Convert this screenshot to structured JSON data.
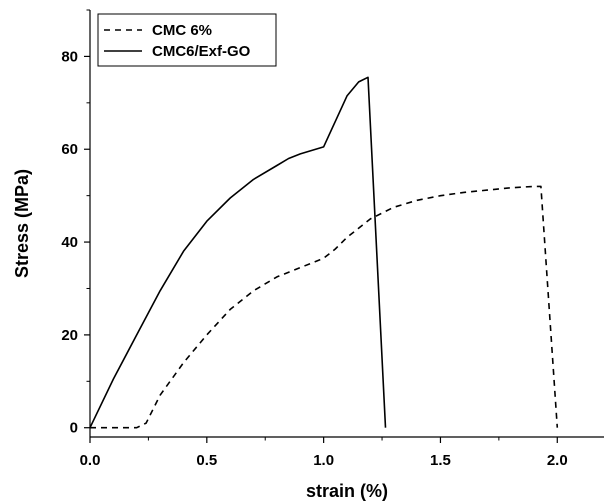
{
  "chart_data": {
    "type": "line",
    "xlabel": "strain (%)",
    "ylabel": "Stress (MPa)",
    "xlim": [
      0,
      2.2
    ],
    "ylim": [
      -2,
      90
    ],
    "xticks": [
      0.0,
      0.5,
      1.0,
      1.5,
      2.0
    ],
    "xtick_labels": [
      "0.0",
      "0.5",
      "1.0",
      "1.5",
      "2.0"
    ],
    "yticks": [
      0,
      20,
      40,
      60,
      80
    ],
    "ytick_labels": [
      "0",
      "20",
      "40",
      "60",
      "80"
    ],
    "grid": false,
    "legend_position": "top-left",
    "series": [
      {
        "name": "CMC 6%",
        "style": "dashed",
        "color": "#000000",
        "x": [
          0.0,
          0.2,
          0.24,
          0.3,
          0.4,
          0.5,
          0.6,
          0.7,
          0.8,
          0.9,
          1.0,
          1.05,
          1.1,
          1.2,
          1.3,
          1.4,
          1.5,
          1.6,
          1.7,
          1.8,
          1.9,
          1.93,
          2.0
        ],
        "y": [
          0,
          0,
          1,
          7,
          14,
          20,
          25.5,
          29.5,
          32.5,
          34.5,
          36.5,
          38.5,
          41,
          45,
          47.5,
          49,
          50,
          50.7,
          51.2,
          51.7,
          52,
          52,
          0
        ]
      },
      {
        "name": "CMC6/Exf-GO",
        "style": "solid",
        "color": "#000000",
        "x": [
          0.0,
          0.1,
          0.2,
          0.3,
          0.4,
          0.5,
          0.6,
          0.7,
          0.8,
          0.85,
          0.9,
          1.0,
          1.05,
          1.1,
          1.15,
          1.19,
          1.265
        ],
        "y": [
          0,
          10.5,
          20,
          29.5,
          38,
          44.5,
          49.5,
          53.5,
          56.5,
          58,
          59,
          60.5,
          66,
          71.5,
          74.5,
          75.5,
          0
        ]
      }
    ]
  }
}
